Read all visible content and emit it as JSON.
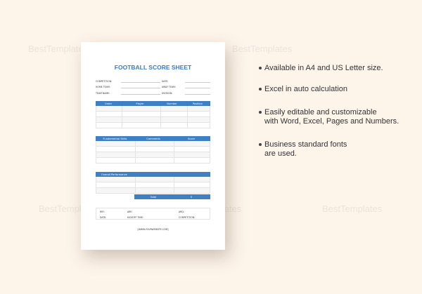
{
  "watermark": "BestTemplates",
  "sheet": {
    "title": "FOOTBALL SCORE SHEET",
    "fields_left": [
      "COMPETITION:",
      "HOME TEAM:",
      "TEAM NAME:"
    ],
    "fields_right": [
      "DATE:",
      "AWAY TEAM:",
      "DIVISION:"
    ],
    "table1": {
      "headers": [
        "Order",
        "Player",
        "Number",
        "Position"
      ]
    },
    "table2": {
      "headers": [
        "Fundamental Skills",
        "Comments",
        "Score"
      ]
    },
    "table3": {
      "headers": [
        "Overall Performance"
      ],
      "total_label": "Total",
      "total_value": "0"
    },
    "footer": {
      "row1": [
        "REF:",
        "ARE:",
        "ARD:"
      ],
      "row2": [
        "DATE:",
        "KICKOFF TIME:",
        "COMPETITION:"
      ]
    },
    "website": "[WWW.YOURWEBSITE.COM]"
  },
  "bullets": [
    [
      "Available in A4 and US Letter size."
    ],
    [
      "Excel in auto calculation"
    ],
    [
      "Easily editable and customizable",
      "with Word, Excel, Pages and Numbers."
    ],
    [
      "Business standard fonts",
      "are used."
    ]
  ],
  "colors": {
    "accent": "#3f7fc3",
    "background": "#fdf4ea"
  }
}
